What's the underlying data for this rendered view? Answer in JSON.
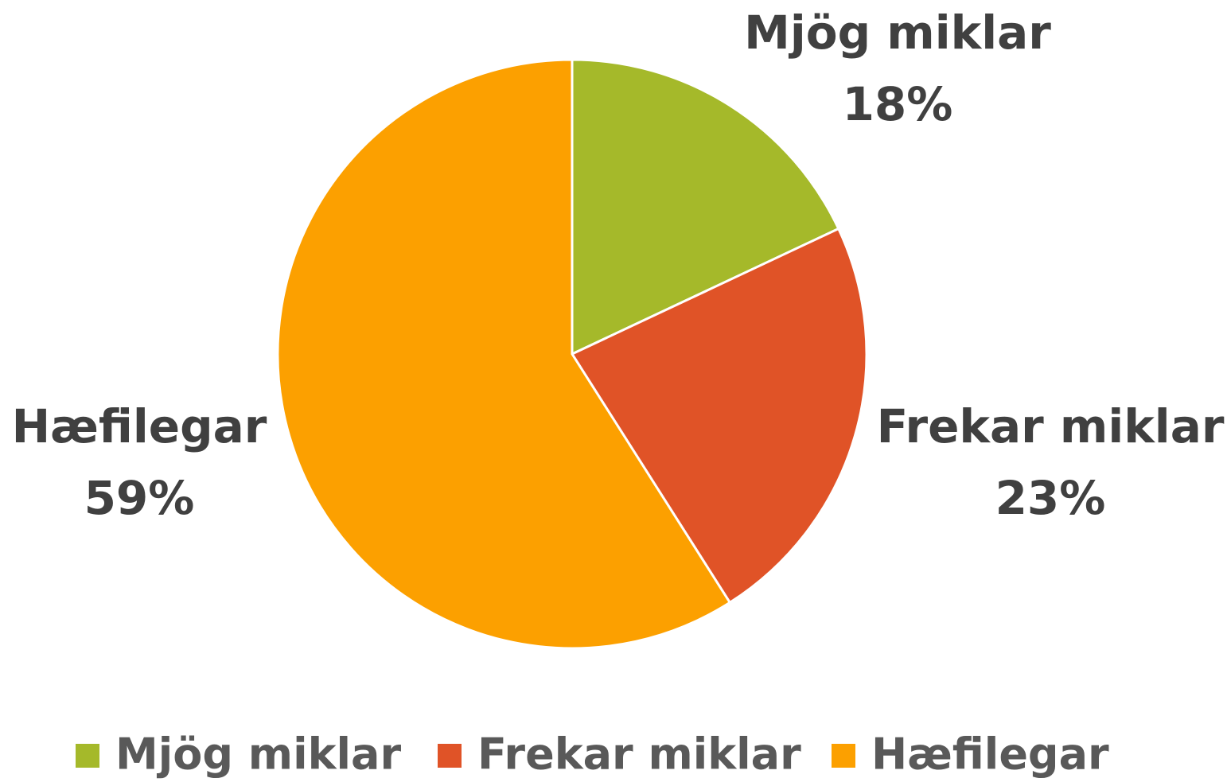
{
  "chart_data": {
    "type": "pie",
    "categories": [
      "Mjög miklar",
      "Frekar miklar",
      "Hæfilegar"
    ],
    "values": [
      18,
      23,
      59
    ],
    "value_labels": [
      "18%",
      "23%",
      "59%"
    ],
    "colors": [
      "#a5b92a",
      "#e05327",
      "#fca000"
    ],
    "legend": "bottom"
  }
}
